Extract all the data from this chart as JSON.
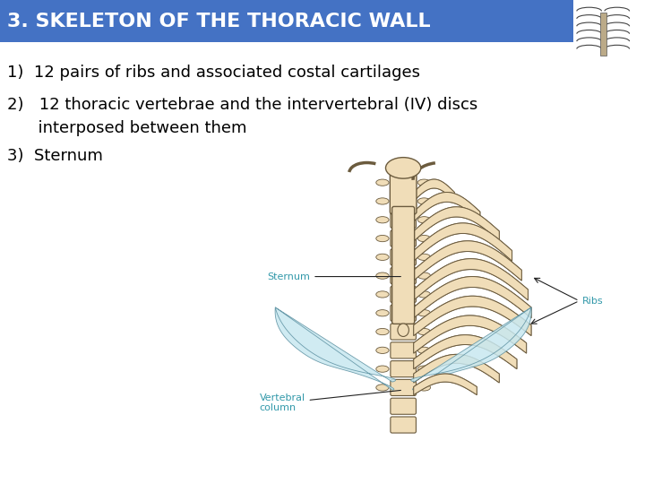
{
  "title": "3. SKELETON OF THE THORACIC WALL",
  "title_bg_color": "#4472C4",
  "title_text_color": "#FFFFFF",
  "title_fontsize": 16,
  "body_bg_color": "#FFFFFF",
  "text_lines": [
    "1)  12 pairs of ribs and associated costal cartilages",
    "2)   12 thoracic vertebrae and the intervertebral (IV) discs",
    "      interposed between them",
    "3)  Sternum"
  ],
  "text_fontsize": 13,
  "text_color": "#000000",
  "image_annotation_sternum": "Sternum",
  "image_annotation_vertebral": "Vertebral\ncolumn",
  "image_annotation_ribs": "Ribs",
  "annotation_color": "#3399AA",
  "annotation_fontsize": 8,
  "bone_color": "#F0DDB8",
  "bone_edge": "#6B5B3E",
  "cartilage_color": "#C8E8F0",
  "cartilage_edge": "#5A8FA0"
}
